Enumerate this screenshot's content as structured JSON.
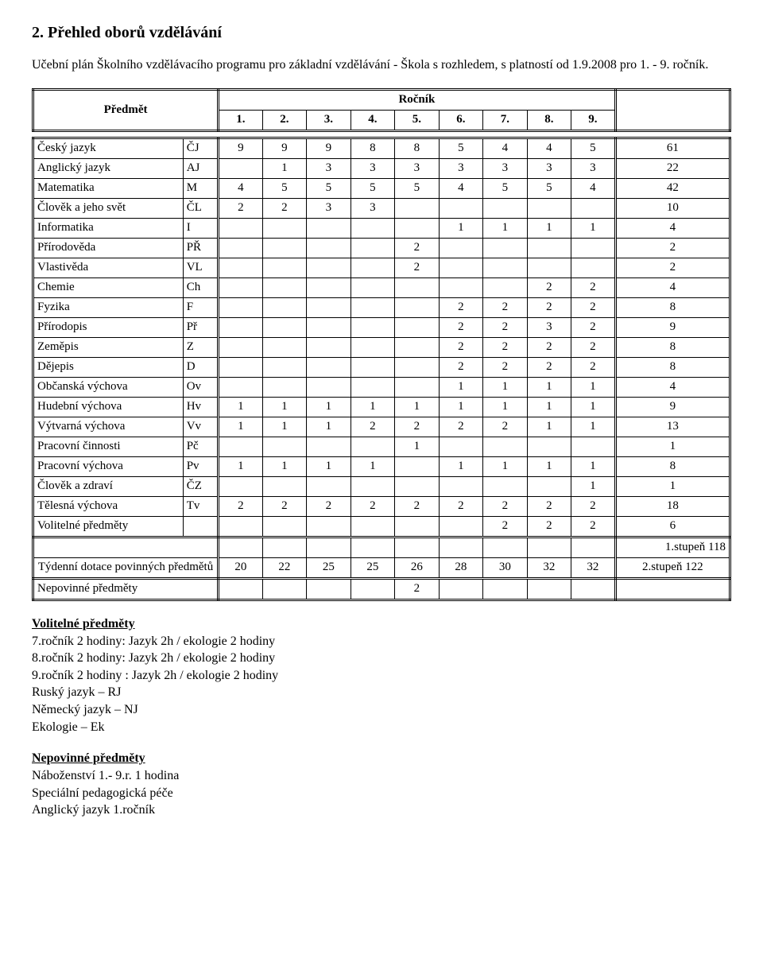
{
  "section_title": "2. Přehled oborů vzdělávání",
  "intro": "Učební plán Školního vzdělávacího programu pro základní vzdělávání -  Škola s rozhledem, s platností od 1.9.2008 pro 1. - 9. ročník.",
  "header": {
    "predmet": "Předmět",
    "rocnik": "Ročník",
    "cols": [
      "1.",
      "2.",
      "3.",
      "4.",
      "5.",
      "6.",
      "7.",
      "8.",
      "9."
    ]
  },
  "rows": [
    {
      "name": "Český jazyk",
      "code": "ČJ",
      "v": [
        "9",
        "9",
        "9",
        "8",
        "8",
        "5",
        "4",
        "4",
        "5"
      ],
      "total": "61"
    },
    {
      "name": "Anglický jazyk",
      "code": "AJ",
      "v": [
        "",
        "1",
        "3",
        "3",
        "3",
        "3",
        "3",
        "3",
        "3"
      ],
      "total": "22"
    },
    {
      "name": "Matematika",
      "code": "M",
      "v": [
        "4",
        "5",
        "5",
        "5",
        "5",
        "4",
        "5",
        "5",
        "4"
      ],
      "total": "42"
    },
    {
      "name": "Člověk a jeho svět",
      "code": "ČL",
      "v": [
        "2",
        "2",
        "3",
        "3",
        "",
        "",
        "",
        "",
        ""
      ],
      "total": "10"
    },
    {
      "name": "Informatika",
      "code": "I",
      "v": [
        "",
        "",
        "",
        "",
        "",
        "1",
        "1",
        "1",
        "1"
      ],
      "total": "4"
    },
    {
      "name": "Přírodověda",
      "code": "PŘ",
      "v": [
        "",
        "",
        "",
        "",
        "2",
        "",
        "",
        "",
        ""
      ],
      "total": "2"
    },
    {
      "name": "Vlastivěda",
      "code": "VL",
      "v": [
        "",
        "",
        "",
        "",
        "2",
        "",
        "",
        "",
        ""
      ],
      "total": "2"
    },
    {
      "name": "Chemie",
      "code": "Ch",
      "v": [
        "",
        "",
        "",
        "",
        "",
        "",
        "",
        "2",
        "2"
      ],
      "total": "4"
    },
    {
      "name": "Fyzika",
      "code": "F",
      "v": [
        "",
        "",
        "",
        "",
        "",
        "2",
        "2",
        "2",
        "2"
      ],
      "total": "8"
    },
    {
      "name": "Přírodopis",
      "code": "Př",
      "v": [
        "",
        "",
        "",
        "",
        "",
        "2",
        "2",
        "3",
        "2"
      ],
      "total": "9"
    },
    {
      "name": "Zeměpis",
      "code": "Z",
      "v": [
        "",
        "",
        "",
        "",
        "",
        "2",
        "2",
        "2",
        "2"
      ],
      "total": "8"
    },
    {
      "name": "Dějepis",
      "code": "D",
      "v": [
        "",
        "",
        "",
        "",
        "",
        "2",
        "2",
        "2",
        "2"
      ],
      "total": "8"
    },
    {
      "name": "Občanská výchova",
      "code": "Ov",
      "v": [
        "",
        "",
        "",
        "",
        "",
        "1",
        "1",
        "1",
        "1"
      ],
      "total": "4"
    },
    {
      "name": "Hudební výchova",
      "code": "Hv",
      "v": [
        "1",
        "1",
        "1",
        "1",
        "1",
        "1",
        "1",
        "1",
        "1"
      ],
      "total": "9"
    },
    {
      "name": "Výtvarná výchova",
      "code": "Vv",
      "v": [
        "1",
        "1",
        "1",
        "2",
        "2",
        "2",
        "2",
        "1",
        "1"
      ],
      "total": "13"
    },
    {
      "name": "Pracovní činnosti",
      "code": "Pč",
      "v": [
        "",
        "",
        "",
        "",
        "1",
        "",
        "",
        "",
        ""
      ],
      "total": "1"
    },
    {
      "name": "Pracovní výchova",
      "code": "Pv",
      "v": [
        "1",
        "1",
        "1",
        "1",
        "",
        "1",
        "1",
        "1",
        "1"
      ],
      "total": "8"
    },
    {
      "name": "Člověk a zdraví",
      "code": "ČZ",
      "v": [
        "",
        "",
        "",
        "",
        "",
        "",
        "",
        "",
        "1"
      ],
      "total": "1"
    },
    {
      "name": "Tělesná výchova",
      "code": "Tv",
      "v": [
        "2",
        "2",
        "2",
        "2",
        "2",
        "2",
        "2",
        "2",
        "2"
      ],
      "total": "18"
    },
    {
      "name": "Volitelné předměty",
      "code": "",
      "v": [
        "",
        "",
        "",
        "",
        "",
        "",
        "2",
        "2",
        "2"
      ],
      "total": "6"
    }
  ],
  "stage1_total": "1.stupeň 118",
  "weekly": {
    "label": "Týdenní dotace povinných předmětů",
    "v": [
      "20",
      "22",
      "25",
      "25",
      "26",
      "28",
      "30",
      "32",
      "32"
    ],
    "total": "2.stupeň 122"
  },
  "optional_row": {
    "label": "Nepovinné předměty",
    "v": [
      "",
      "",
      "",
      "",
      "2",
      "",
      "",
      "",
      ""
    ],
    "total": ""
  },
  "volitelne": {
    "heading": "Volitelné předměty",
    "lines": [
      "7.ročník 2 hodiny:  Jazyk 2h / ekologie 2 hodiny",
      "8.ročník 2 hodiny:  Jazyk 2h / ekologie 2 hodiny",
      "9.ročník 2 hodiny  : Jazyk 2h / ekologie 2 hodiny",
      "Ruský jazyk – RJ",
      "Německý jazyk – NJ",
      "Ekologie – Ek"
    ]
  },
  "nepovinne": {
    "heading": "Nepovinné předměty",
    "lines": [
      "Náboženství  1.- 9.r.  1 hodina",
      "Speciální pedagogická péče",
      "Anglický jazyk 1.ročník"
    ]
  }
}
